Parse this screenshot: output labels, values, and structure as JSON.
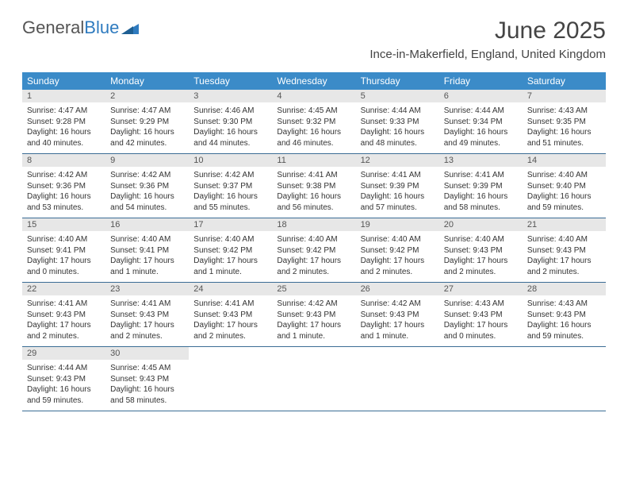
{
  "brand": {
    "part1": "General",
    "part2": "Blue"
  },
  "title": "June 2025",
  "location": "Ince-in-Makerfield, England, United Kingdom",
  "colors": {
    "header_bg": "#3b8bc8",
    "header_text": "#ffffff",
    "daynum_bg": "#e7e7e7",
    "week_border": "#3b6d95",
    "brand_blue": "#2f7bbf",
    "text": "#333333"
  },
  "dow": [
    "Sunday",
    "Monday",
    "Tuesday",
    "Wednesday",
    "Thursday",
    "Friday",
    "Saturday"
  ],
  "weeks": [
    [
      {
        "n": "1",
        "sr": "4:47 AM",
        "ss": "9:28 PM",
        "dl": "16 hours and 40 minutes."
      },
      {
        "n": "2",
        "sr": "4:47 AM",
        "ss": "9:29 PM",
        "dl": "16 hours and 42 minutes."
      },
      {
        "n": "3",
        "sr": "4:46 AM",
        "ss": "9:30 PM",
        "dl": "16 hours and 44 minutes."
      },
      {
        "n": "4",
        "sr": "4:45 AM",
        "ss": "9:32 PM",
        "dl": "16 hours and 46 minutes."
      },
      {
        "n": "5",
        "sr": "4:44 AM",
        "ss": "9:33 PM",
        "dl": "16 hours and 48 minutes."
      },
      {
        "n": "6",
        "sr": "4:44 AM",
        "ss": "9:34 PM",
        "dl": "16 hours and 49 minutes."
      },
      {
        "n": "7",
        "sr": "4:43 AM",
        "ss": "9:35 PM",
        "dl": "16 hours and 51 minutes."
      }
    ],
    [
      {
        "n": "8",
        "sr": "4:42 AM",
        "ss": "9:36 PM",
        "dl": "16 hours and 53 minutes."
      },
      {
        "n": "9",
        "sr": "4:42 AM",
        "ss": "9:36 PM",
        "dl": "16 hours and 54 minutes."
      },
      {
        "n": "10",
        "sr": "4:42 AM",
        "ss": "9:37 PM",
        "dl": "16 hours and 55 minutes."
      },
      {
        "n": "11",
        "sr": "4:41 AM",
        "ss": "9:38 PM",
        "dl": "16 hours and 56 minutes."
      },
      {
        "n": "12",
        "sr": "4:41 AM",
        "ss": "9:39 PM",
        "dl": "16 hours and 57 minutes."
      },
      {
        "n": "13",
        "sr": "4:41 AM",
        "ss": "9:39 PM",
        "dl": "16 hours and 58 minutes."
      },
      {
        "n": "14",
        "sr": "4:40 AM",
        "ss": "9:40 PM",
        "dl": "16 hours and 59 minutes."
      }
    ],
    [
      {
        "n": "15",
        "sr": "4:40 AM",
        "ss": "9:41 PM",
        "dl": "17 hours and 0 minutes."
      },
      {
        "n": "16",
        "sr": "4:40 AM",
        "ss": "9:41 PM",
        "dl": "17 hours and 1 minute."
      },
      {
        "n": "17",
        "sr": "4:40 AM",
        "ss": "9:42 PM",
        "dl": "17 hours and 1 minute."
      },
      {
        "n": "18",
        "sr": "4:40 AM",
        "ss": "9:42 PM",
        "dl": "17 hours and 2 minutes."
      },
      {
        "n": "19",
        "sr": "4:40 AM",
        "ss": "9:42 PM",
        "dl": "17 hours and 2 minutes."
      },
      {
        "n": "20",
        "sr": "4:40 AM",
        "ss": "9:43 PM",
        "dl": "17 hours and 2 minutes."
      },
      {
        "n": "21",
        "sr": "4:40 AM",
        "ss": "9:43 PM",
        "dl": "17 hours and 2 minutes."
      }
    ],
    [
      {
        "n": "22",
        "sr": "4:41 AM",
        "ss": "9:43 PM",
        "dl": "17 hours and 2 minutes."
      },
      {
        "n": "23",
        "sr": "4:41 AM",
        "ss": "9:43 PM",
        "dl": "17 hours and 2 minutes."
      },
      {
        "n": "24",
        "sr": "4:41 AM",
        "ss": "9:43 PM",
        "dl": "17 hours and 2 minutes."
      },
      {
        "n": "25",
        "sr": "4:42 AM",
        "ss": "9:43 PM",
        "dl": "17 hours and 1 minute."
      },
      {
        "n": "26",
        "sr": "4:42 AM",
        "ss": "9:43 PM",
        "dl": "17 hours and 1 minute."
      },
      {
        "n": "27",
        "sr": "4:43 AM",
        "ss": "9:43 PM",
        "dl": "17 hours and 0 minutes."
      },
      {
        "n": "28",
        "sr": "4:43 AM",
        "ss": "9:43 PM",
        "dl": "16 hours and 59 minutes."
      }
    ],
    [
      {
        "n": "29",
        "sr": "4:44 AM",
        "ss": "9:43 PM",
        "dl": "16 hours and 59 minutes."
      },
      {
        "n": "30",
        "sr": "4:45 AM",
        "ss": "9:43 PM",
        "dl": "16 hours and 58 minutes."
      },
      null,
      null,
      null,
      null,
      null
    ]
  ],
  "labels": {
    "sunrise": "Sunrise: ",
    "sunset": "Sunset: ",
    "daylight": "Daylight: "
  }
}
